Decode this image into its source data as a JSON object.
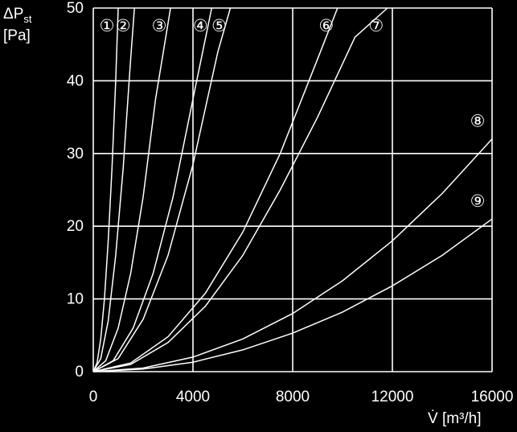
{
  "chart_data": {
    "type": "line",
    "ylabel_main": "ΔP",
    "ylabel_sub": "st",
    "ylabel_unit": "[Pa]",
    "xlabel": "V̇ [m³/h]",
    "xlim": [
      0,
      16000
    ],
    "ylim": [
      0,
      50
    ],
    "x_ticks": [
      "0",
      "4000",
      "8000",
      "12000",
      "16000"
    ],
    "y_ticks": [
      "0",
      "10",
      "20",
      "30",
      "40",
      "50"
    ],
    "grid": true,
    "colors": {
      "background": "#000000",
      "foreground": "#ffffff"
    },
    "series": [
      {
        "name": "①",
        "points": [
          [
            0,
            0
          ],
          [
            150,
            1.2
          ],
          [
            300,
            4.5
          ],
          [
            450,
            10
          ],
          [
            600,
            18
          ],
          [
            750,
            28
          ],
          [
            900,
            40
          ],
          [
            1000,
            50
          ]
        ]
      },
      {
        "name": "②",
        "points": [
          [
            0,
            0
          ],
          [
            300,
            1.8
          ],
          [
            600,
            7
          ],
          [
            900,
            16
          ],
          [
            1200,
            28
          ],
          [
            1500,
            43
          ],
          [
            1650,
            50
          ]
        ]
      },
      {
        "name": "③",
        "points": [
          [
            0,
            0
          ],
          [
            500,
            1.5
          ],
          [
            1000,
            6
          ],
          [
            1500,
            13.5
          ],
          [
            2000,
            24
          ],
          [
            2500,
            37.5
          ],
          [
            3100,
            50
          ]
        ]
      },
      {
        "name": "④",
        "points": [
          [
            0,
            0
          ],
          [
            800,
            1.5
          ],
          [
            1600,
            6
          ],
          [
            2400,
            13.5
          ],
          [
            3200,
            24
          ],
          [
            4000,
            37.5
          ],
          [
            4750,
            50
          ]
        ]
      },
      {
        "name": "⑤",
        "points": [
          [
            0,
            0
          ],
          [
            1000,
            1.8
          ],
          [
            2000,
            7.2
          ],
          [
            3000,
            16
          ],
          [
            4000,
            28.5
          ],
          [
            5000,
            44
          ],
          [
            5500,
            50
          ]
        ]
      },
      {
        "name": "⑥",
        "points": [
          [
            0,
            0
          ],
          [
            1500,
            1.2
          ],
          [
            3000,
            4.8
          ],
          [
            4500,
            10.8
          ],
          [
            6000,
            19.2
          ],
          [
            7500,
            30
          ],
          [
            9000,
            43
          ],
          [
            9800,
            50
          ]
        ]
      },
      {
        "name": "⑦",
        "points": [
          [
            0,
            0
          ],
          [
            1500,
            1
          ],
          [
            3000,
            4
          ],
          [
            4500,
            9
          ],
          [
            6000,
            16
          ],
          [
            7500,
            25
          ],
          [
            9000,
            35
          ],
          [
            10500,
            46
          ],
          [
            11800,
            50
          ]
        ]
      },
      {
        "name": "⑧",
        "points": [
          [
            0,
            0
          ],
          [
            2000,
            0.5
          ],
          [
            4000,
            2
          ],
          [
            6000,
            4.5
          ],
          [
            8000,
            8
          ],
          [
            10000,
            12.5
          ],
          [
            12000,
            18
          ],
          [
            14000,
            24.5
          ],
          [
            16000,
            32
          ]
        ]
      },
      {
        "name": "⑨",
        "points": [
          [
            0,
            0
          ],
          [
            2000,
            0.35
          ],
          [
            4000,
            1.3
          ],
          [
            6000,
            3
          ],
          [
            8000,
            5.3
          ],
          [
            10000,
            8.2
          ],
          [
            12000,
            11.8
          ],
          [
            14000,
            16
          ],
          [
            16000,
            21
          ]
        ]
      }
    ]
  }
}
